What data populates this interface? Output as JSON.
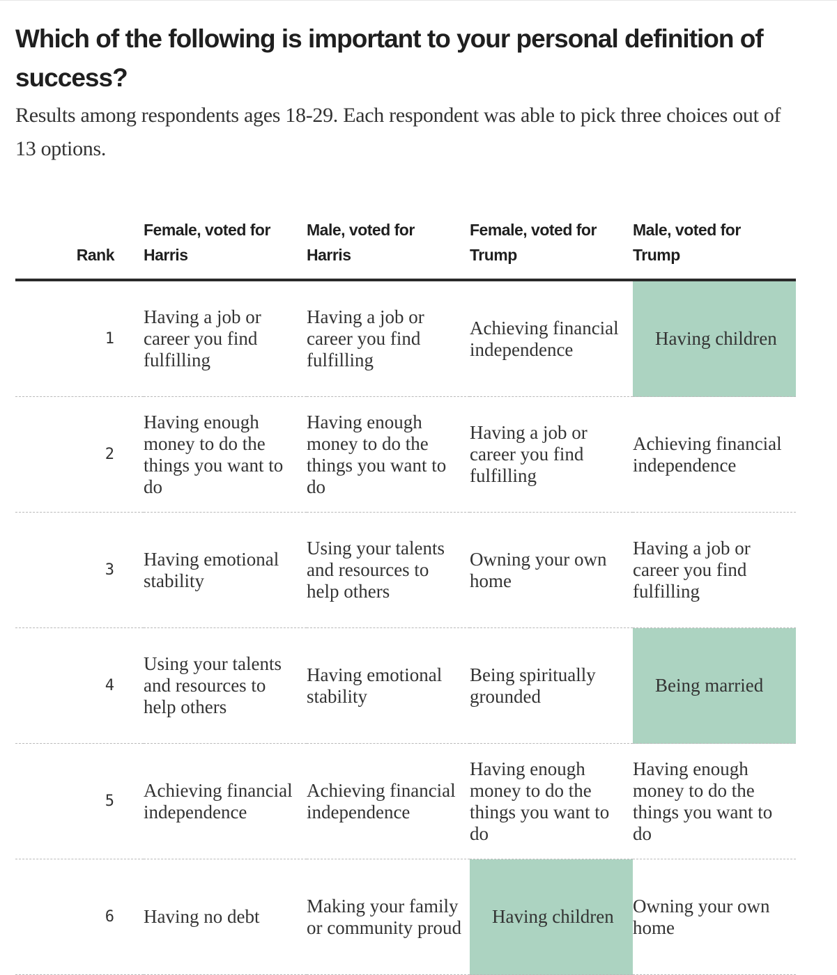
{
  "chart_data": {
    "type": "table",
    "title": "Which of the following is important to your personal definition of success?",
    "subtitle": "Results among respondents ages 18-29. Each respondent was able to pick three choices out of 13 options.",
    "rank_header": "Rank",
    "columns": [
      "Female, voted for Harris",
      "Male, voted for Harris",
      "Female, voted for Trump",
      "Male, voted for Trump"
    ],
    "highlight_color": "#acd3c1",
    "rows": [
      {
        "rank": "1",
        "cells": [
          {
            "text": "Having a job or career you find fulfilling",
            "highlight": false
          },
          {
            "text": "Having a job or career you find fulfilling",
            "highlight": false
          },
          {
            "text": "Achieving financial independence",
            "highlight": false
          },
          {
            "text": "Having children",
            "highlight": true
          }
        ]
      },
      {
        "rank": "2",
        "cells": [
          {
            "text": "Having enough money to do the things you want to do",
            "highlight": false
          },
          {
            "text": "Having enough money to do the things you want to do",
            "highlight": false
          },
          {
            "text": "Having a job or career you find fulfilling",
            "highlight": false
          },
          {
            "text": "Achieving financial independence",
            "highlight": false
          }
        ]
      },
      {
        "rank": "3",
        "cells": [
          {
            "text": "Having emotional stability",
            "highlight": false
          },
          {
            "text": "Using your talents and resources to help others",
            "highlight": false
          },
          {
            "text": "Owning your own home",
            "highlight": false
          },
          {
            "text": "Having a job or career you find fulfilling",
            "highlight": false
          }
        ]
      },
      {
        "rank": "4",
        "cells": [
          {
            "text": "Using your talents and resources to help others",
            "highlight": false
          },
          {
            "text": "Having emotional stability",
            "highlight": false
          },
          {
            "text": "Being spiritually grounded",
            "highlight": false
          },
          {
            "text": "Being married",
            "highlight": true
          }
        ]
      },
      {
        "rank": "5",
        "cells": [
          {
            "text": "Achieving financial independence",
            "highlight": false
          },
          {
            "text": "Achieving financial independence",
            "highlight": false
          },
          {
            "text": "Having enough money to do the things you want to do",
            "highlight": false
          },
          {
            "text": "Having enough money to do the things you want to do",
            "highlight": false
          }
        ]
      },
      {
        "rank": "6",
        "cells": [
          {
            "text": "Having no debt",
            "highlight": false
          },
          {
            "text": "Making your family or community proud",
            "highlight": false
          },
          {
            "text": "Having children",
            "highlight": true
          },
          {
            "text": "Owning your own home",
            "highlight": false
          }
        ]
      }
    ]
  }
}
